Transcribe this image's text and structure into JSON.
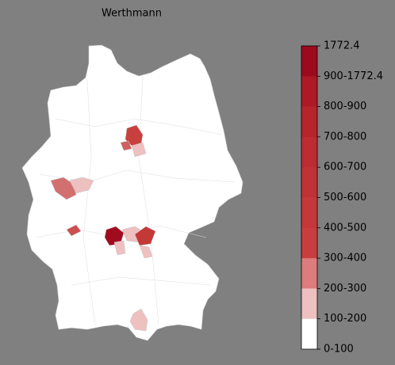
{
  "title": "Werthmann",
  "legend": {
    "labels": [
      "1772.4",
      "900-1772.4",
      "800-900",
      "700-800",
      "600-700",
      "500-600",
      "400-500",
      "300-400",
      "200-300",
      "100-200",
      "0-100"
    ],
    "colors": [
      "#9c0a1e",
      "#ad1a26",
      "#b6242c",
      "#bc2c32",
      "#c03236",
      "#c4383a",
      "#c83e3e",
      "#dc7c7c",
      "#eec0c0",
      "#ffffff"
    ]
  }
}
